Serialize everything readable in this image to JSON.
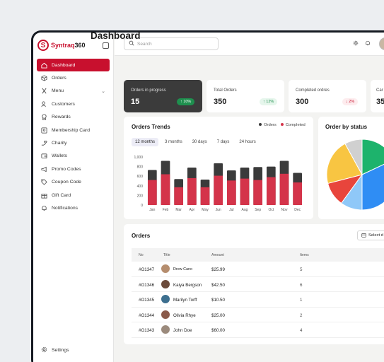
{
  "brand": {
    "name": "Syntraq",
    "suffix": "360"
  },
  "sidebar": {
    "items": [
      {
        "label": "Dashboard",
        "icon": "home-icon"
      },
      {
        "label": "Orders",
        "icon": "box-icon"
      },
      {
        "label": "Menu",
        "icon": "utensils-icon"
      },
      {
        "label": "Customers",
        "icon": "users-icon"
      },
      {
        "label": "Rewards",
        "icon": "award-icon"
      },
      {
        "label": "Membership Card",
        "icon": "id-card-icon"
      },
      {
        "label": "Charity",
        "icon": "hand-heart-icon"
      },
      {
        "label": "Wallets",
        "icon": "wallet-icon"
      },
      {
        "label": "Promo Codes",
        "icon": "megaphone-icon"
      },
      {
        "label": "Coupon Code",
        "icon": "tag-icon"
      },
      {
        "label": "Gift Card",
        "icon": "gift-icon"
      },
      {
        "label": "Notifications",
        "icon": "bell-icon"
      }
    ],
    "settings_label": "Settings"
  },
  "search": {
    "placeholder": "Search"
  },
  "page": {
    "title": "Dashboard"
  },
  "stats": [
    {
      "label": "Orders in progress",
      "value": "15",
      "badge": "↑ 10%"
    },
    {
      "label": "Total Orders",
      "value": "350",
      "badge": "↑ 12%"
    },
    {
      "label": "Completed ordres",
      "value": "300",
      "badge": "↓ 2%"
    },
    {
      "label": "Car",
      "value": "35"
    }
  ],
  "trends": {
    "title": "Orders Trends",
    "legend": [
      "Orders",
      "Completed"
    ],
    "tabs": [
      "12 months",
      "3 months",
      "30 days",
      "7 days",
      "24 hours"
    ],
    "active_tab": "12 months"
  },
  "status": {
    "title": "Order by status"
  },
  "orders": {
    "title": "Orders",
    "select_label": "Select d",
    "columns": [
      "No",
      "Title",
      "Amount",
      "Items"
    ],
    "rows": [
      {
        "no": "#O1347",
        "title": "Drew Cano",
        "amount": "$25.99",
        "items": "5"
      },
      {
        "no": "#O1346",
        "title": "Kaiya Bergson",
        "amount": "$42.50",
        "items": "6"
      },
      {
        "no": "#O1345",
        "title": "Marilyn Torff",
        "amount": "$10.50",
        "items": "1"
      },
      {
        "no": "#O1344",
        "title": "Olivia Rhye",
        "amount": "$25.00",
        "items": "2"
      },
      {
        "no": "#O1343",
        "title": "John Doe",
        "amount": "$60.00",
        "items": "4"
      }
    ]
  },
  "colors": {
    "accent": "#c8102e",
    "dark": "#3b3b3b"
  },
  "chart_data": [
    {
      "type": "bar",
      "title": "Orders Trends",
      "categories": [
        "Jan",
        "Feb",
        "Mar",
        "Apr",
        "May",
        "Jun",
        "Jul",
        "Aug",
        "Sep",
        "Oct",
        "Nov",
        "Dec"
      ],
      "series": [
        {
          "name": "Orders",
          "values": [
            730,
            920,
            540,
            780,
            530,
            870,
            720,
            780,
            790,
            800,
            920,
            670
          ]
        },
        {
          "name": "Completed",
          "values": [
            520,
            640,
            370,
            560,
            370,
            610,
            510,
            550,
            520,
            580,
            650,
            470
          ]
        }
      ],
      "yticks": [
        "1,000",
        "800",
        "600",
        "400",
        "200",
        "0"
      ],
      "ylim": [
        0,
        1000
      ],
      "stacked_overlay": true,
      "colors": [
        "#3b3b3b",
        "#d4344a"
      ]
    },
    {
      "type": "pie",
      "title": "Order by status",
      "values": [
        18,
        32,
        10,
        11,
        21,
        8
      ],
      "colors": [
        "#1db36c",
        "#2f8df4",
        "#8fc8f8",
        "#e8453c",
        "#f8c542",
        "#d0d0d0"
      ]
    }
  ]
}
